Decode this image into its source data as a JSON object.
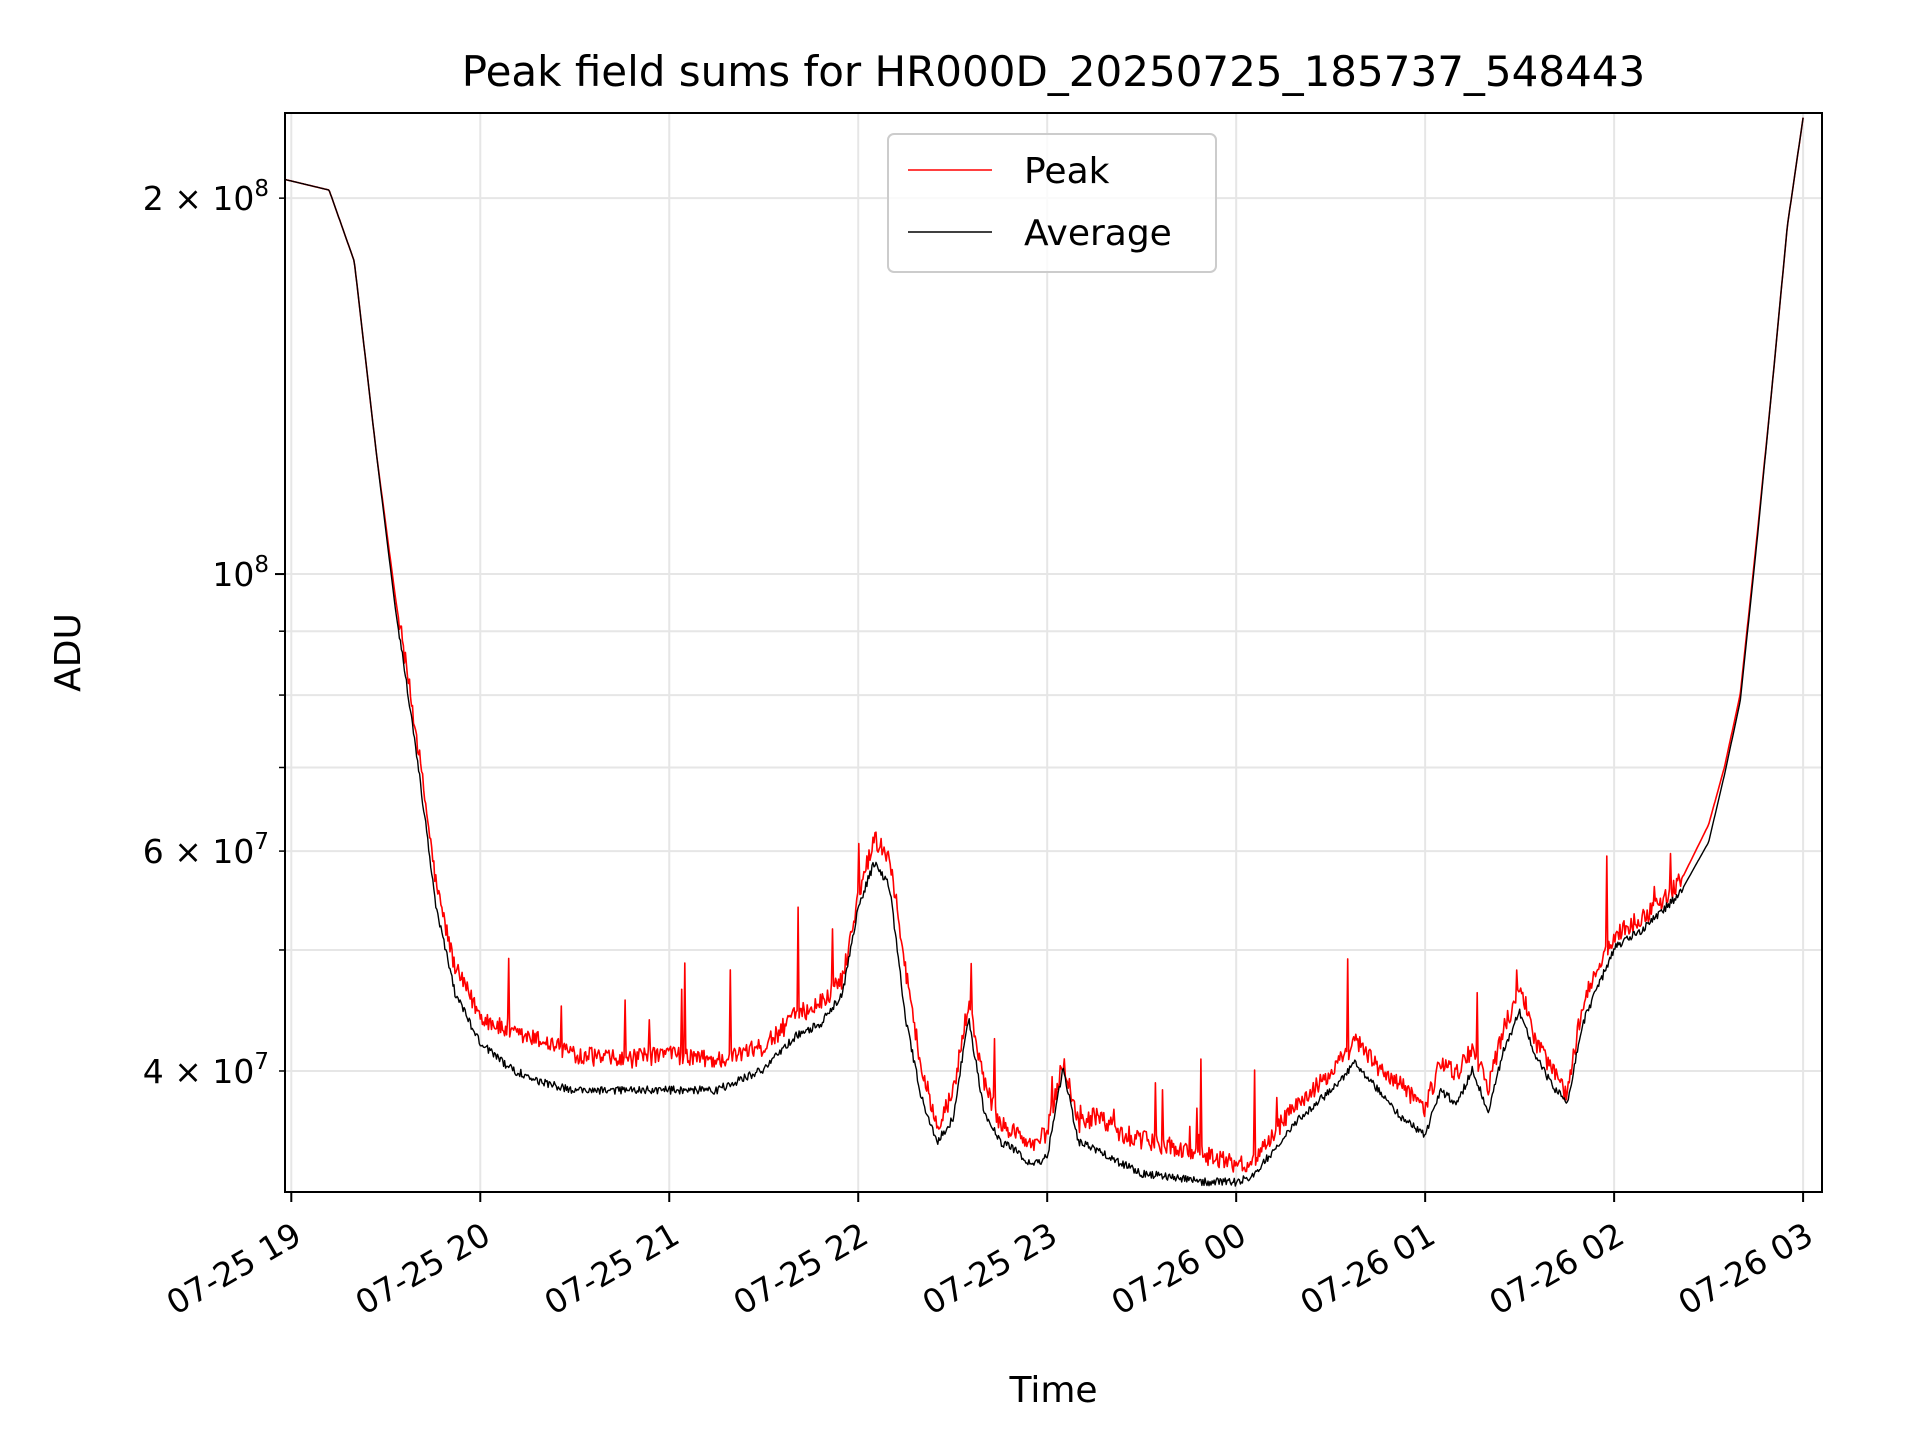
{
  "chart_data": {
    "type": "line",
    "title": "Peak field sums for HR000D_20250725_185737_548443",
    "xlabel": "Time",
    "ylabel": "ADU",
    "x_scale": "time",
    "y_scale": "log",
    "xlim": [
      "2025-07-25 18:58",
      "2025-07-26 03:06"
    ],
    "ylim": [
      32000000,
      234000000
    ],
    "grid": true,
    "legend_position": "upper center",
    "x_ticks": [
      "07-25 19",
      "07-25 20",
      "07-25 21",
      "07-25 22",
      "07-25 23",
      "07-26 00",
      "07-26 01",
      "07-26 02",
      "07-26 03"
    ],
    "y_ticks": [
      {
        "value": 40000000,
        "mantissa": "4",
        "exponent": "7"
      },
      {
        "value": 60000000,
        "mantissa": "6",
        "exponent": "7"
      },
      {
        "value": 100000000,
        "mantissa": "",
        "exponent": "8"
      },
      {
        "value": 200000000,
        "mantissa": "2",
        "exponent": "8"
      }
    ],
    "series": [
      {
        "name": "Peak",
        "color": "#ff0000",
        "x": [
          "2025-07-25 18:58",
          "2025-07-25 19:05",
          "2025-07-25 19:12",
          "2025-07-25 19:20",
          "2025-07-25 19:27",
          "2025-07-25 19:33",
          "2025-07-25 19:40",
          "2025-07-25 19:46",
          "2025-07-25 19:52",
          "2025-07-25 20:00",
          "2025-07-25 20:10",
          "2025-07-25 20:20",
          "2025-07-25 20:30",
          "2025-07-25 20:45",
          "2025-07-25 21:00",
          "2025-07-25 21:15",
          "2025-07-25 21:30",
          "2025-07-25 21:40",
          "2025-07-25 21:48",
          "2025-07-25 21:55",
          "2025-07-25 22:00",
          "2025-07-25 22:05",
          "2025-07-25 22:10",
          "2025-07-25 22:15",
          "2025-07-25 22:20",
          "2025-07-25 22:25",
          "2025-07-25 22:30",
          "2025-07-25 22:35",
          "2025-07-25 22:40",
          "2025-07-25 22:45",
          "2025-07-25 22:50",
          "2025-07-25 22:55",
          "2025-07-25 23:00",
          "2025-07-25 23:05",
          "2025-07-25 23:10",
          "2025-07-25 23:15",
          "2025-07-25 23:20",
          "2025-07-25 23:25",
          "2025-07-25 23:30",
          "2025-07-25 23:40",
          "2025-07-25 23:50",
          "2025-07-26 00:00",
          "2025-07-26 00:05",
          "2025-07-26 00:10",
          "2025-07-26 00:20",
          "2025-07-26 00:30",
          "2025-07-26 00:38",
          "2025-07-26 00:45",
          "2025-07-26 00:53",
          "2025-07-26 01:00",
          "2025-07-26 01:05",
          "2025-07-26 01:10",
          "2025-07-26 01:15",
          "2025-07-26 01:20",
          "2025-07-26 01:25",
          "2025-07-26 01:30",
          "2025-07-26 01:35",
          "2025-07-26 01:40",
          "2025-07-26 01:45",
          "2025-07-26 01:50",
          "2025-07-26 02:00",
          "2025-07-26 02:10",
          "2025-07-26 02:20",
          "2025-07-26 02:30",
          "2025-07-26 02:35",
          "2025-07-26 02:40",
          "2025-07-26 02:45",
          "2025-07-26 02:50",
          "2025-07-26 02:55",
          "2025-07-26 03:00"
        ],
        "y": [
          207000000,
          205000000,
          203000000,
          178000000,
          125000000,
          96000000,
          73000000,
          56000000,
          48000000,
          44000000,
          42500000,
          42000000,
          41000000,
          40500000,
          41000000,
          40500000,
          41500000,
          44000000,
          45000000,
          47000000,
          55000000,
          61000000,
          59000000,
          48000000,
          40000000,
          36000000,
          38000000,
          45000000,
          39000000,
          36000000,
          35500000,
          34500000,
          35500000,
          40500000,
          36000000,
          36500000,
          36000000,
          35000000,
          35000000,
          34500000,
          34000000,
          33500000,
          33500000,
          35000000,
          37500000,
          39500000,
          42000000,
          40000000,
          38500000,
          37000000,
          40500000,
          39500000,
          41500000,
          38500000,
          43000000,
          46000000,
          42000000,
          40000000,
          38000000,
          45000000,
          51000000,
          53000000,
          56000000,
          63000000,
          70000000,
          80000000,
          105000000,
          140000000,
          190000000,
          232000000
        ]
      },
      {
        "name": "Average",
        "color": "#000000",
        "x": [
          "2025-07-25 18:58",
          "2025-07-25 19:05",
          "2025-07-25 19:12",
          "2025-07-25 19:20",
          "2025-07-25 19:27",
          "2025-07-25 19:33",
          "2025-07-25 19:40",
          "2025-07-25 19:46",
          "2025-07-25 19:52",
          "2025-07-25 20:00",
          "2025-07-25 20:10",
          "2025-07-25 20:20",
          "2025-07-25 20:30",
          "2025-07-25 20:45",
          "2025-07-25 21:00",
          "2025-07-25 21:15",
          "2025-07-25 21:30",
          "2025-07-25 21:40",
          "2025-07-25 21:48",
          "2025-07-25 21:55",
          "2025-07-25 22:00",
          "2025-07-25 22:05",
          "2025-07-25 22:10",
          "2025-07-25 22:15",
          "2025-07-25 22:20",
          "2025-07-25 22:25",
          "2025-07-25 22:30",
          "2025-07-25 22:35",
          "2025-07-25 22:40",
          "2025-07-25 22:45",
          "2025-07-25 22:50",
          "2025-07-25 22:55",
          "2025-07-25 23:00",
          "2025-07-25 23:05",
          "2025-07-25 23:10",
          "2025-07-25 23:15",
          "2025-07-25 23:20",
          "2025-07-25 23:25",
          "2025-07-25 23:30",
          "2025-07-25 23:40",
          "2025-07-25 23:50",
          "2025-07-26 00:00",
          "2025-07-26 00:05",
          "2025-07-26 00:10",
          "2025-07-26 00:20",
          "2025-07-26 00:30",
          "2025-07-26 00:38",
          "2025-07-26 00:45",
          "2025-07-26 00:53",
          "2025-07-26 01:00",
          "2025-07-26 01:05",
          "2025-07-26 01:10",
          "2025-07-26 01:15",
          "2025-07-26 01:20",
          "2025-07-26 01:25",
          "2025-07-26 01:30",
          "2025-07-26 01:35",
          "2025-07-26 01:40",
          "2025-07-26 01:45",
          "2025-07-26 01:50",
          "2025-07-26 02:00",
          "2025-07-26 02:10",
          "2025-07-26 02:20",
          "2025-07-26 02:30",
          "2025-07-26 02:35",
          "2025-07-26 02:40",
          "2025-07-26 02:45",
          "2025-07-26 02:50",
          "2025-07-26 02:55",
          "2025-07-26 03:00"
        ],
        "y": [
          207000000,
          205000000,
          203000000,
          178000000,
          125000000,
          94000000,
          71000000,
          54000000,
          46000000,
          42000000,
          40000000,
          39000000,
          38500000,
          38500000,
          38500000,
          38500000,
          40000000,
          42500000,
          43500000,
          46000000,
          54000000,
          58500000,
          56000000,
          44000000,
          38000000,
          35000000,
          36500000,
          44000000,
          37000000,
          35000000,
          34500000,
          33500000,
          34000000,
          40000000,
          35000000,
          34500000,
          34000000,
          33500000,
          33000000,
          32800000,
          32500000,
          32500000,
          32800000,
          34000000,
          36500000,
          38500000,
          40500000,
          38500000,
          36500000,
          35500000,
          38500000,
          37500000,
          40000000,
          37000000,
          41500000,
          44500000,
          41000000,
          39000000,
          37500000,
          43500000,
          50000000,
          52000000,
          55000000,
          61000000,
          69000000,
          79000000,
          104000000,
          140000000,
          190000000,
          232000000
        ]
      }
    ]
  }
}
